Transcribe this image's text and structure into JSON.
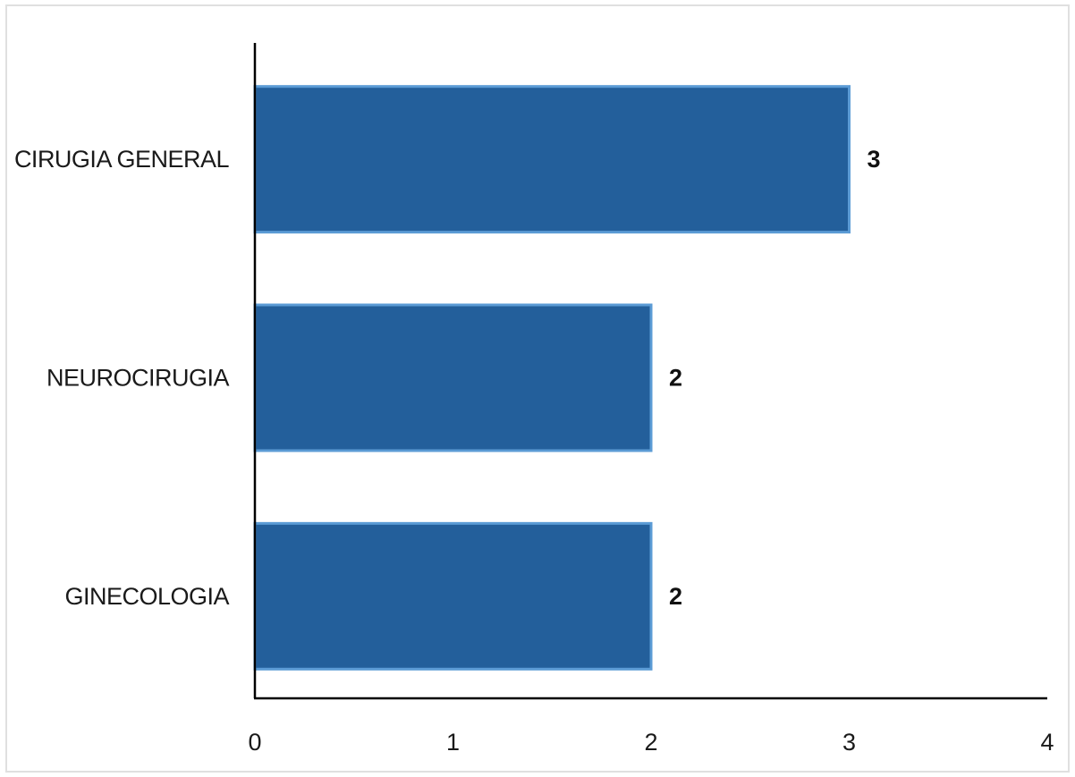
{
  "chart_data": {
    "type": "bar",
    "orientation": "horizontal",
    "title": "",
    "xlabel": "",
    "ylabel": "",
    "categories": [
      "CIRUGIA GENERAL",
      "NEUROCIRUGIA",
      "GINECOLOGIA"
    ],
    "values": [
      3,
      2,
      2
    ],
    "data_labels": [
      "3",
      "2",
      "2"
    ],
    "xlim": [
      0,
      4
    ],
    "x_ticks": [
      "0",
      "1",
      "2",
      "3",
      "4"
    ],
    "grid": false,
    "legend": "none",
    "colors": {
      "bar_fill": "#235f9b",
      "bar_stroke": "#5b9bd5",
      "axis": "#000000"
    }
  }
}
